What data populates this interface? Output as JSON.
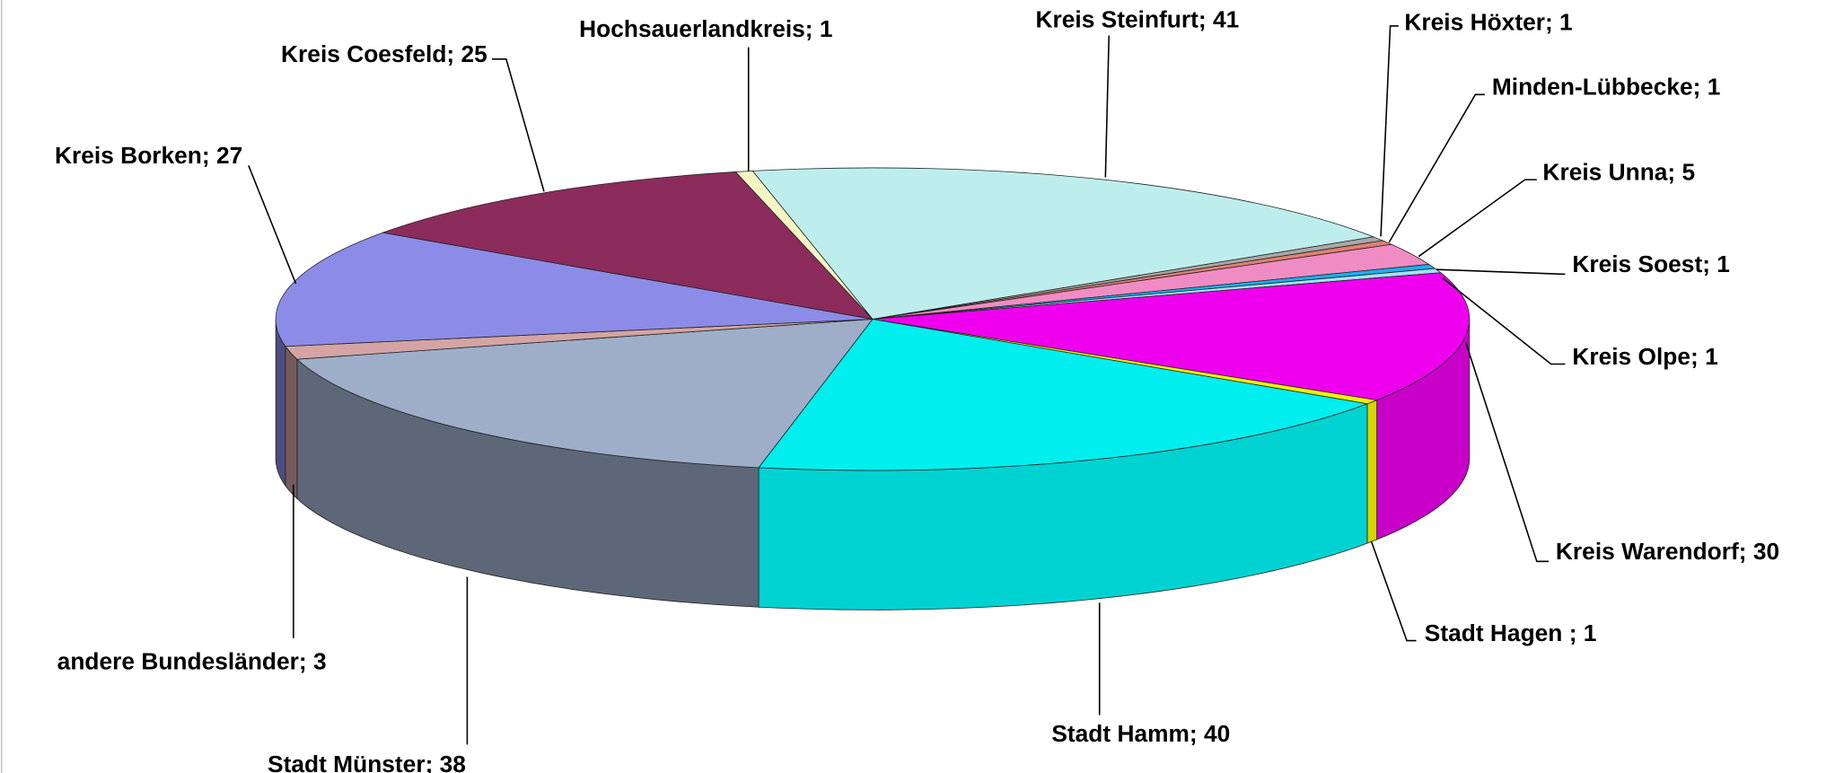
{
  "chart_data": {
    "type": "pie",
    "categories": [
      "Kreis Steinfurt; 41",
      "Kreis Höxter; 1",
      "Minden-Lübbecke; 1",
      "Kreis Unna; 5",
      "Kreis Soest; 1",
      "Kreis Olpe; 1",
      "Kreis Warendorf; 30",
      "Stadt Hagen ; 1",
      "Stadt Hamm; 40",
      "Stadt Münster; 38",
      "andere Bundesländer; 3",
      "Kreis Borken; 27",
      "Kreis Coesfeld; 25",
      "Hochsauerlandkreis; 1"
    ],
    "values": [
      41,
      1,
      1,
      5,
      1,
      1,
      30,
      1,
      40,
      38,
      3,
      27,
      25,
      1
    ],
    "colors": [
      "#bdeeed",
      "#a8a8a8",
      "#e08070",
      "#f08cc4",
      "#1ab0f0",
      "#a0e4f4",
      "#ee00ee",
      "#f0f000",
      "#00eeee",
      "#9eaec8",
      "#d4a4a4",
      "#8c8ce8",
      "#8c2c5c",
      "#f4f4c4"
    ]
  }
}
